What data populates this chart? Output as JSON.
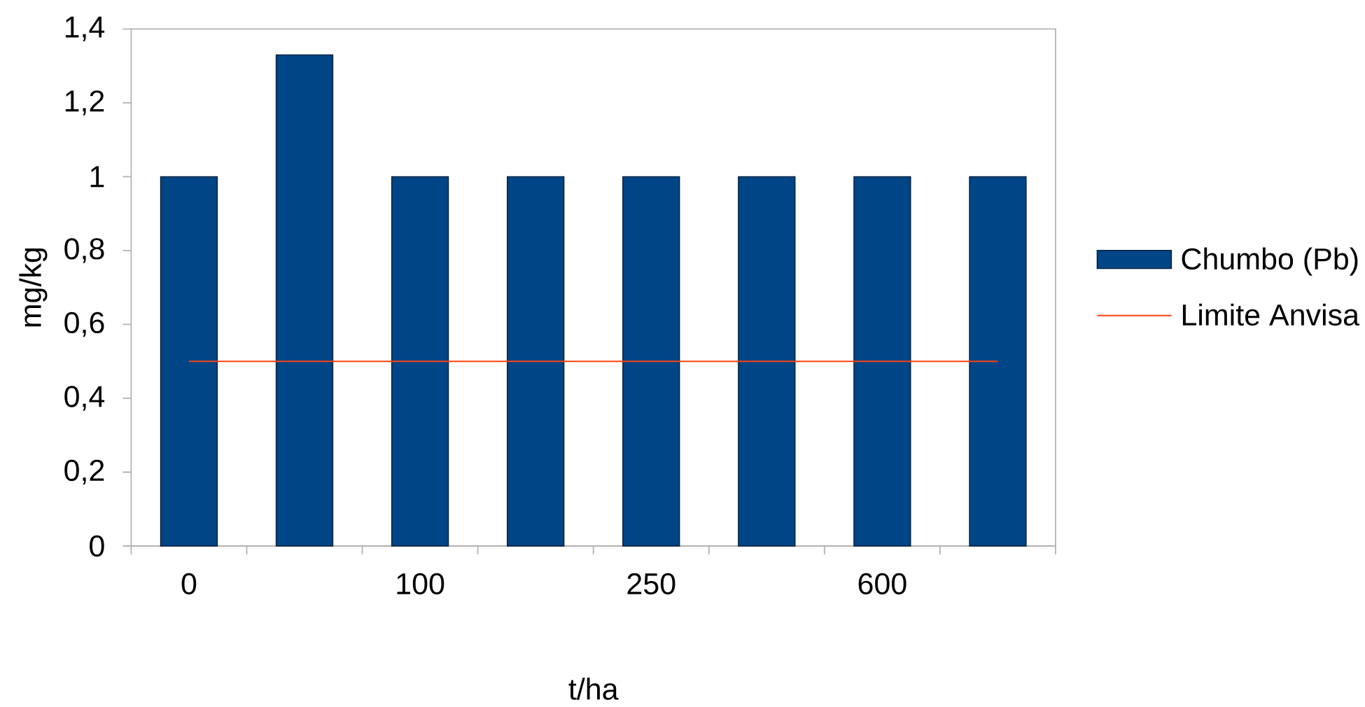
{
  "chart_data": {
    "type": "bar",
    "xlabel": "t/ha",
    "ylabel": "mg/kg",
    "categories": [
      "0",
      null,
      "100",
      null,
      "250",
      null,
      "600",
      null
    ],
    "series": [
      {
        "name": "Chumbo (Pb)",
        "color": "#004586",
        "values": [
          1,
          1.33,
          1,
          1,
          1,
          1,
          1,
          1
        ]
      },
      {
        "name": "Limite Anvisa",
        "type": "line",
        "color": "#ff420e",
        "values": [
          0.5,
          0.5,
          0.5,
          0.5,
          0.5,
          0.5,
          0.5,
          0.5
        ]
      }
    ],
    "ylim": [
      0,
      1.4
    ],
    "yticks": [
      0,
      {
        "value": 0.2,
        "label": "0,2"
      },
      {
        "value": 0.4,
        "label": "0,4"
      },
      {
        "value": 0.6,
        "label": "0,6"
      },
      {
        "value": 0.8,
        "label": "0,8"
      },
      1,
      {
        "value": 1.2,
        "label": "1,2"
      },
      {
        "value": 1.4,
        "label": "1,4"
      }
    ],
    "legend": "right",
    "marker": "none"
  }
}
